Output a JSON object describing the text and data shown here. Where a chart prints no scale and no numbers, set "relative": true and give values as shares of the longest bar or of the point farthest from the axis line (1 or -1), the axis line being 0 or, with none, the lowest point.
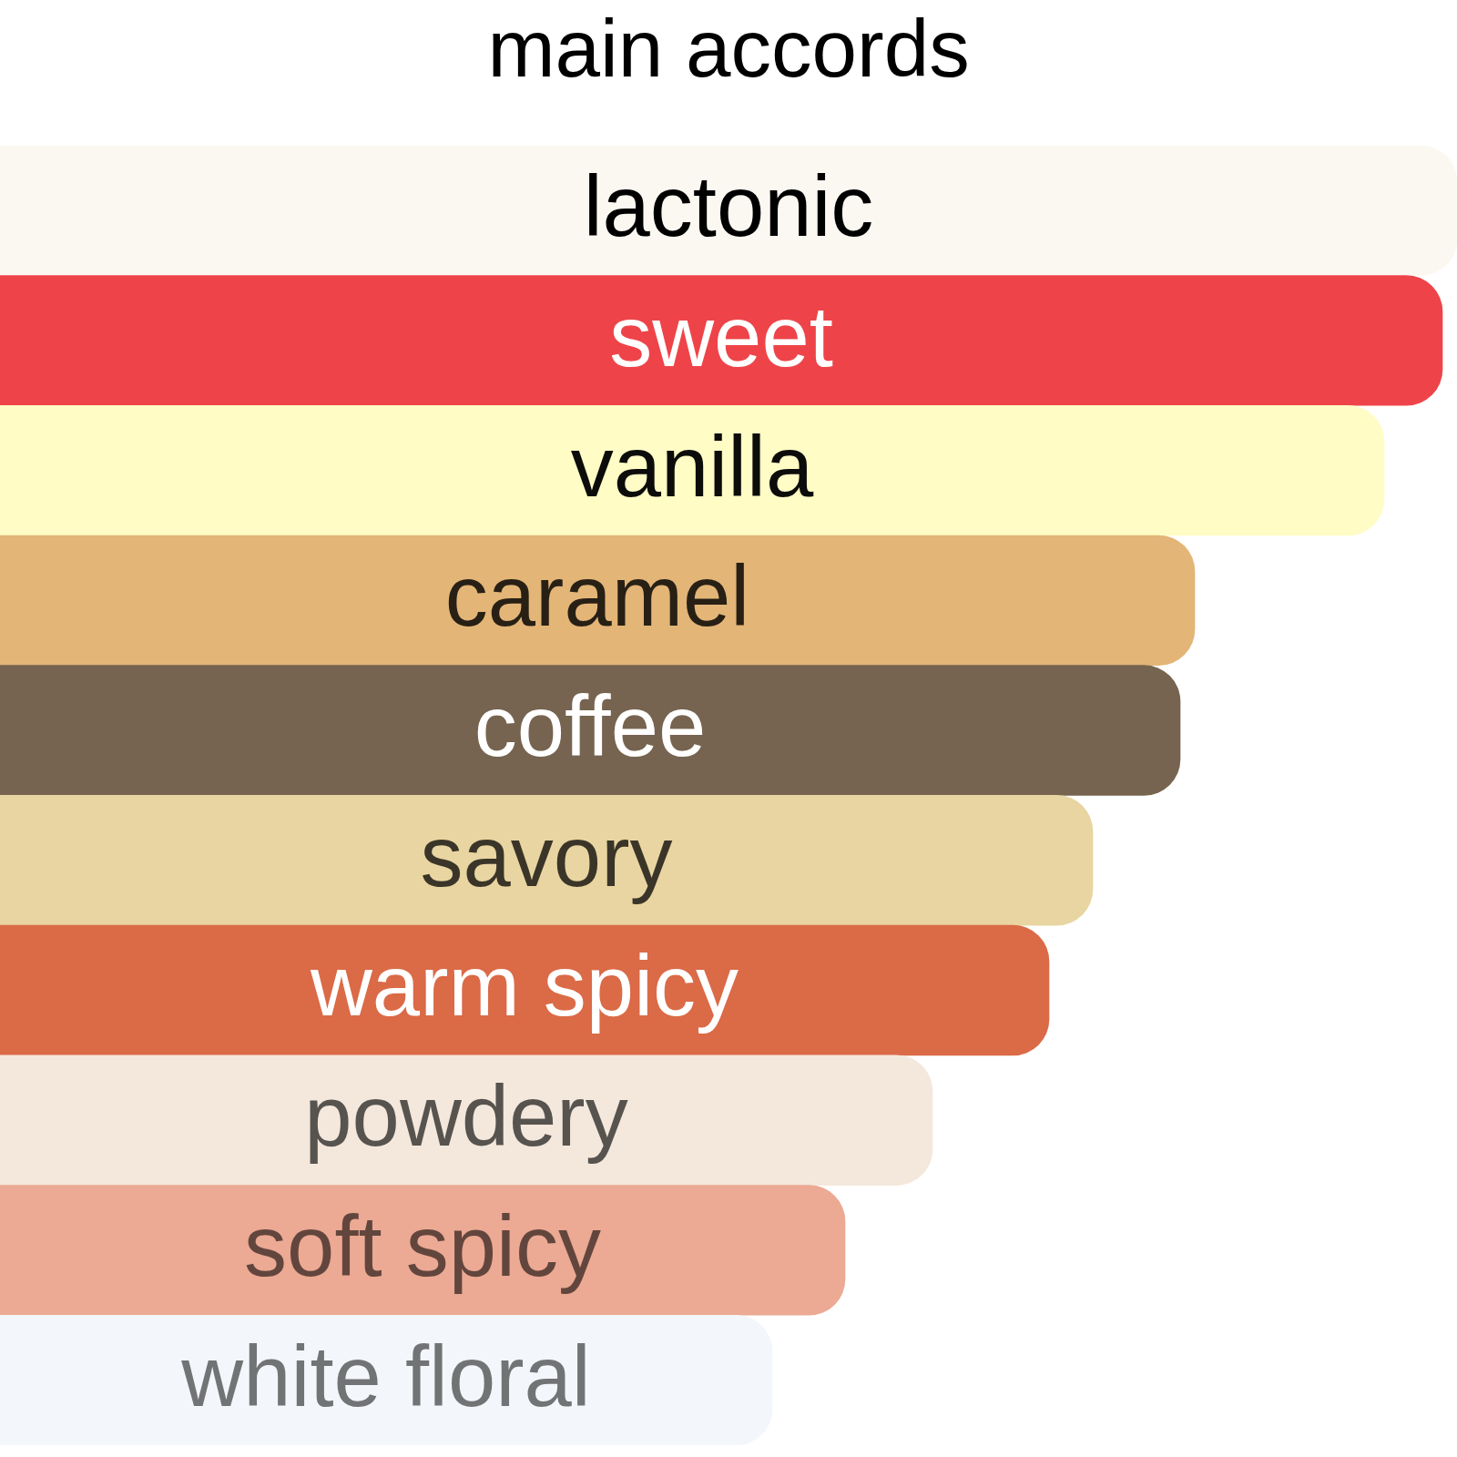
{
  "chart_data": {
    "type": "bar",
    "title": "main accords",
    "orientation": "horizontal",
    "relative": true,
    "categories": [
      "lactonic",
      "sweet",
      "vanilla",
      "caramel",
      "coffee",
      "savory",
      "warm spicy",
      "powdery",
      "soft spicy",
      "white floral"
    ],
    "values": [
      1,
      0.99,
      0.95,
      0.82,
      0.81,
      0.75,
      0.72,
      0.64,
      0.58,
      0.53
    ],
    "colors": [
      "#fbf8f1",
      "#ee4449",
      "#fffcc5",
      "#e3b577",
      "#766450",
      "#e9d5a1",
      "#db6a47",
      "#f4e8dc",
      "#eca993",
      "#f3f6fb"
    ]
  }
}
